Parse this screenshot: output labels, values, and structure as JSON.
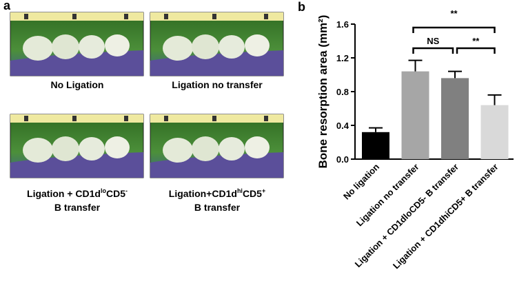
{
  "panel_a": {
    "label": "a",
    "images": [
      {
        "caption": [
          [
            "No Ligation"
          ]
        ]
      },
      {
        "caption": [
          [
            "Ligation no transfer"
          ]
        ]
      },
      {
        "caption": [
          [
            "Ligation + CD1d",
            "lo",
            "CD5",
            "-"
          ],
          [
            "B transfer"
          ]
        ]
      },
      {
        "caption": [
          [
            "Ligation+CD1d",
            "hi",
            "CD5",
            "+"
          ],
          [
            "B transfer"
          ]
        ]
      }
    ]
  },
  "chart_data": {
    "type": "bar",
    "label": "b",
    "y_label": "Bone resorption area (mm²)",
    "categories": [
      "No ligation",
      "Ligation no transfer",
      "Ligation + CD1dloCD5- B transfer",
      "Ligation + CD1dhiCD5+ B transfer"
    ],
    "values": [
      0.32,
      1.04,
      0.96,
      0.64
    ],
    "errors": [
      0.05,
      0.13,
      0.08,
      0.12
    ],
    "colors": [
      "#000000",
      "#a6a6a6",
      "#808080",
      "#d9d9d9"
    ],
    "ylim": [
      0,
      1.6
    ],
    "yticks": [
      {
        "value": 0,
        "label": "0.0"
      },
      0.4,
      0.8,
      1.2,
      1.6
    ],
    "annotations": [
      "**",
      "NS",
      "**"
    ]
  }
}
